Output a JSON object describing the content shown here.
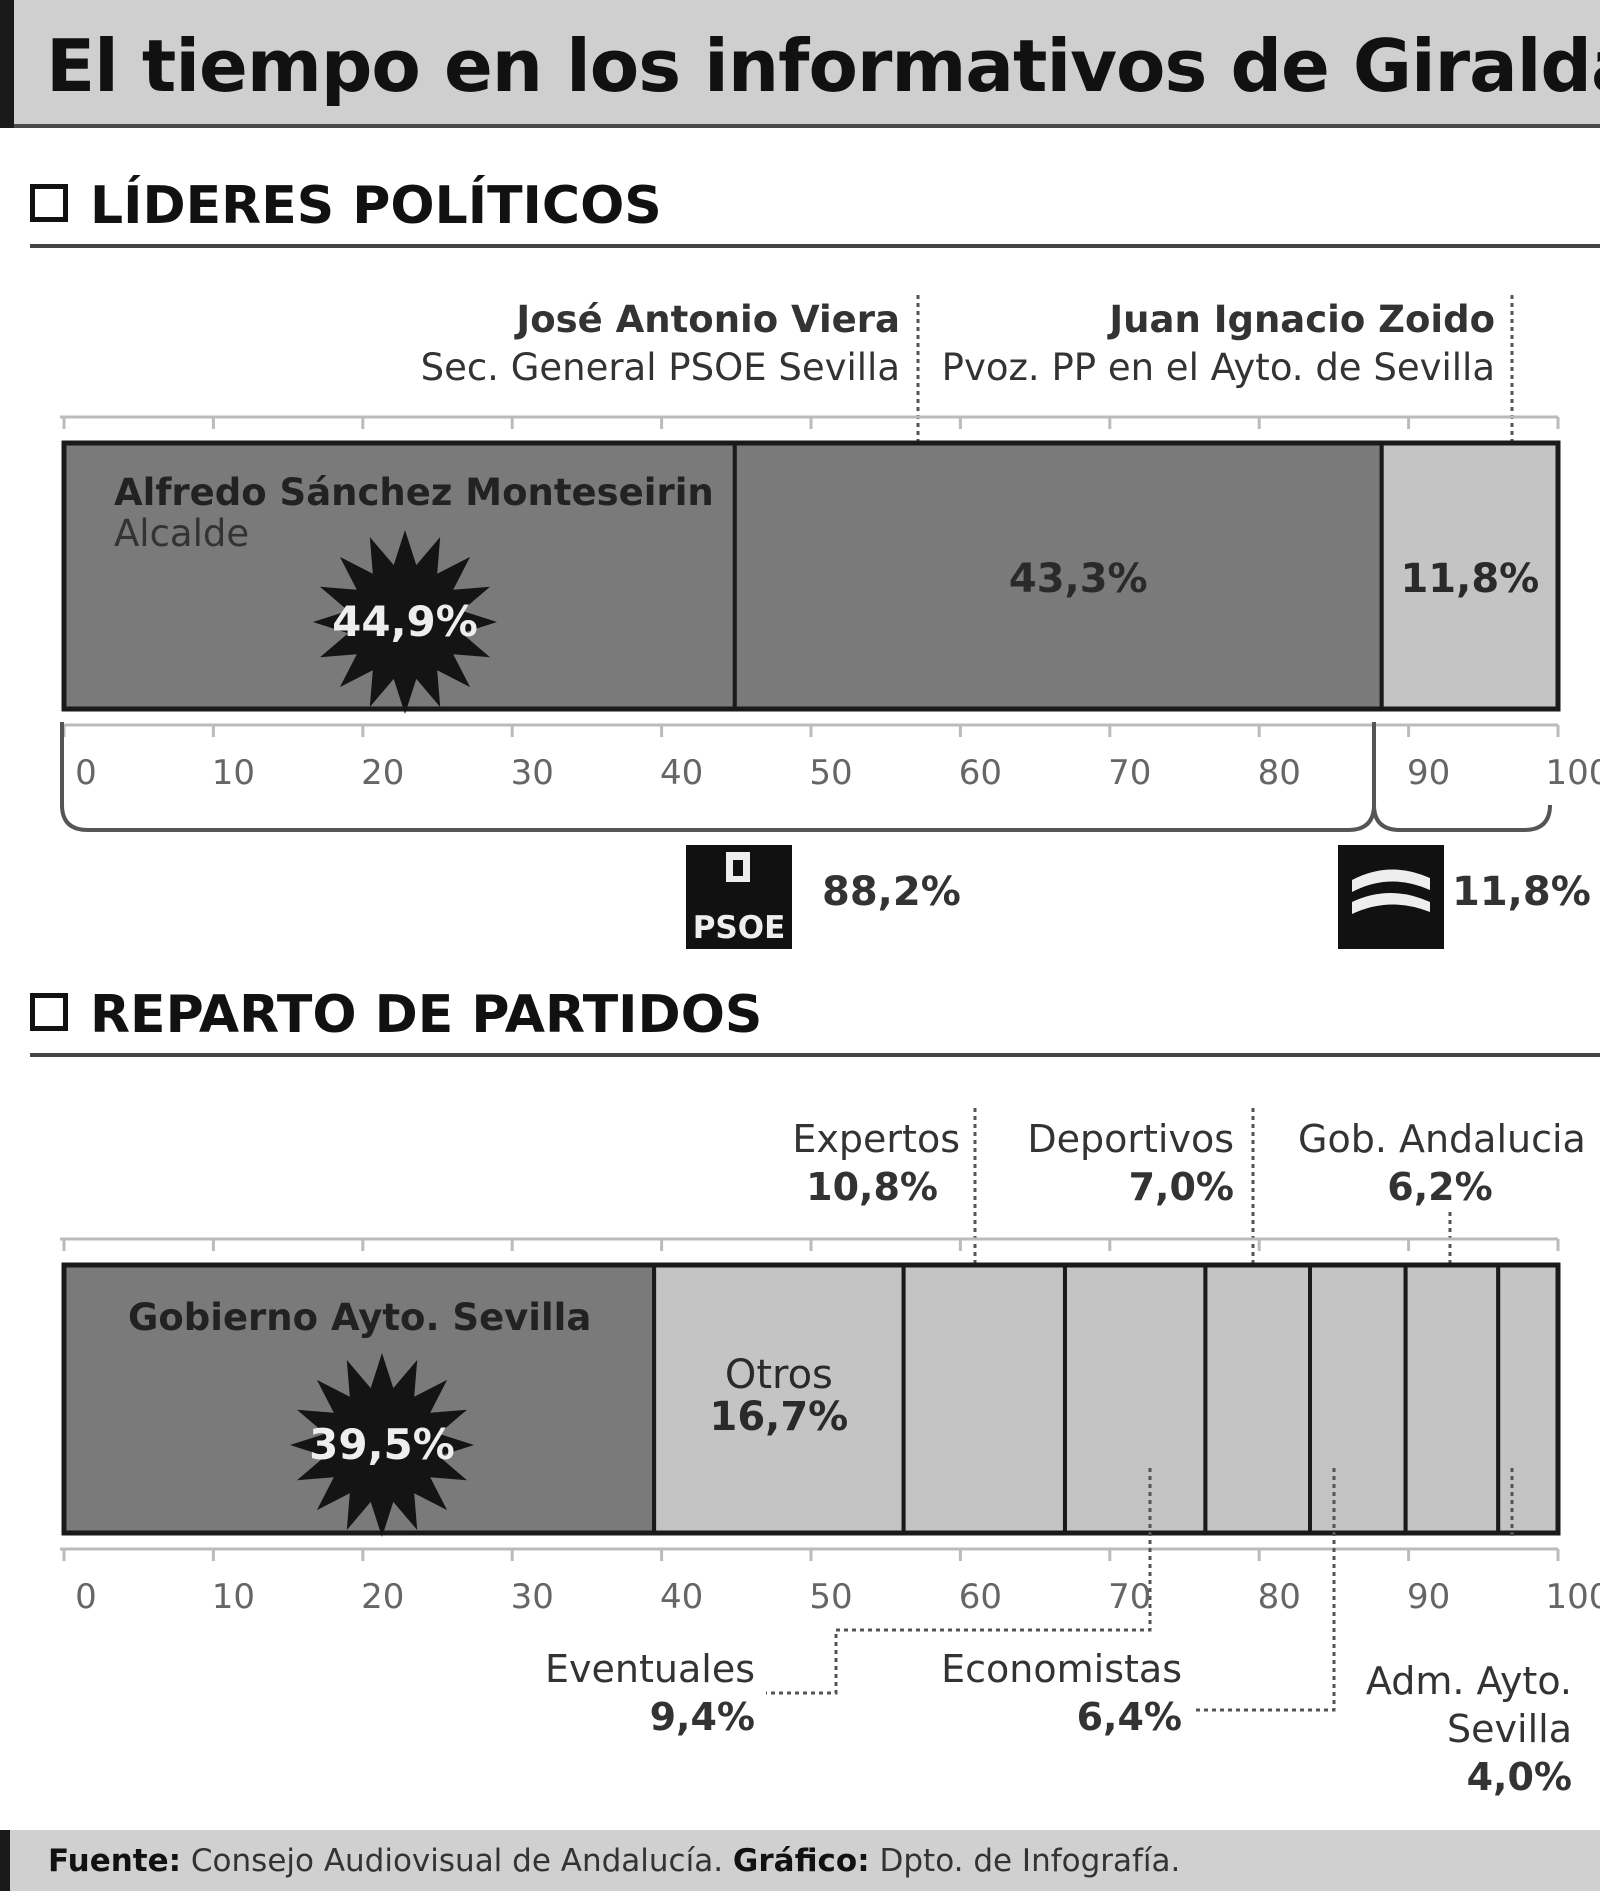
{
  "title": "El tiempo en los informativos de Giralda",
  "sections": {
    "leaders": "LÍDERES POLÍTICOS",
    "parties": "REPARTO DE PARTIDOS"
  },
  "leaders_labels": {
    "monteseirin_name": "Alfredo Sánchez Monteseirin",
    "monteseirin_role": "Alcalde",
    "viera_name": "José Antonio Viera",
    "viera_role": "Sec. General PSOE Sevilla",
    "zoido_name": "Juan Ignacio Zoido",
    "zoido_role": "Pvoz. PP en el Ayto. de Sevilla"
  },
  "party_totals": [
    {
      "logo": "PSOE",
      "value": "88,2%"
    },
    {
      "logo": "PP",
      "value": "11,8%"
    }
  ],
  "chart_data": [
    {
      "type": "bar",
      "orientation": "horizontal-stacked",
      "xlim": [
        0,
        100
      ],
      "ticks": [
        "0",
        "10",
        "20",
        "30",
        "40",
        "50",
        "60",
        "70",
        "80",
        "90",
        "100"
      ],
      "series": [
        {
          "name": "Alfredo Sánchez Monteseirin",
          "value": 44.9,
          "label": "44,9%",
          "color": "#7a7a7a"
        },
        {
          "name": "José Antonio Viera",
          "value": 43.3,
          "label": "43,3%",
          "color": "#7a7a7a"
        },
        {
          "name": "Juan Ignacio Zoido",
          "value": 11.8,
          "label": "11,8%",
          "color": "#c4c4c4"
        }
      ]
    },
    {
      "type": "bar",
      "orientation": "horizontal-stacked",
      "xlim": [
        0,
        100
      ],
      "ticks": [
        "0",
        "10",
        "20",
        "30",
        "40",
        "50",
        "60",
        "70",
        "80",
        "90",
        "100"
      ],
      "series": [
        {
          "name": "Gobierno Ayto. Sevilla",
          "value": 39.5,
          "label": "39,5%",
          "color": "#7a7a7a"
        },
        {
          "name": "Otros",
          "value": 16.7,
          "label": "16,7%",
          "color": "#c4c4c4"
        },
        {
          "name": "Expertos",
          "value": 10.8,
          "label": "10,8%",
          "color": "#c4c4c4"
        },
        {
          "name": "Eventuales",
          "value": 9.4,
          "label": "9,4%",
          "color": "#c4c4c4"
        },
        {
          "name": "Deportivos",
          "value": 7.0,
          "label": "7,0%",
          "color": "#c4c4c4"
        },
        {
          "name": "Economistas",
          "value": 6.4,
          "label": "6,4%",
          "color": "#c4c4c4"
        },
        {
          "name": "Gob. Andalucia",
          "value": 6.2,
          "label": "6,2%",
          "color": "#c4c4c4"
        },
        {
          "name": "Adm. Ayto. Sevilla",
          "value": 4.0,
          "label": "4,0%",
          "color": "#c4c4c4"
        }
      ]
    }
  ],
  "parties_labels": {
    "expertos": [
      "Expertos",
      "10,8%"
    ],
    "deportivos": [
      "Deportivos",
      "7,0%"
    ],
    "gob_andalucia": [
      "Gob. Andalucia",
      "6,2%"
    ],
    "eventuales": [
      "Eventuales",
      "9,4%"
    ],
    "economistas": [
      "Economistas",
      "6,4%"
    ],
    "adm_ayto": [
      "Adm. Ayto.",
      "Sevilla",
      "4,0%"
    ]
  },
  "footer": {
    "source_label": "Fuente:",
    "source": "Consejo Audiovisual de Andalucía.",
    "graphic_label": "Gráfico:",
    "graphic": "Dpto. de Infografía."
  }
}
